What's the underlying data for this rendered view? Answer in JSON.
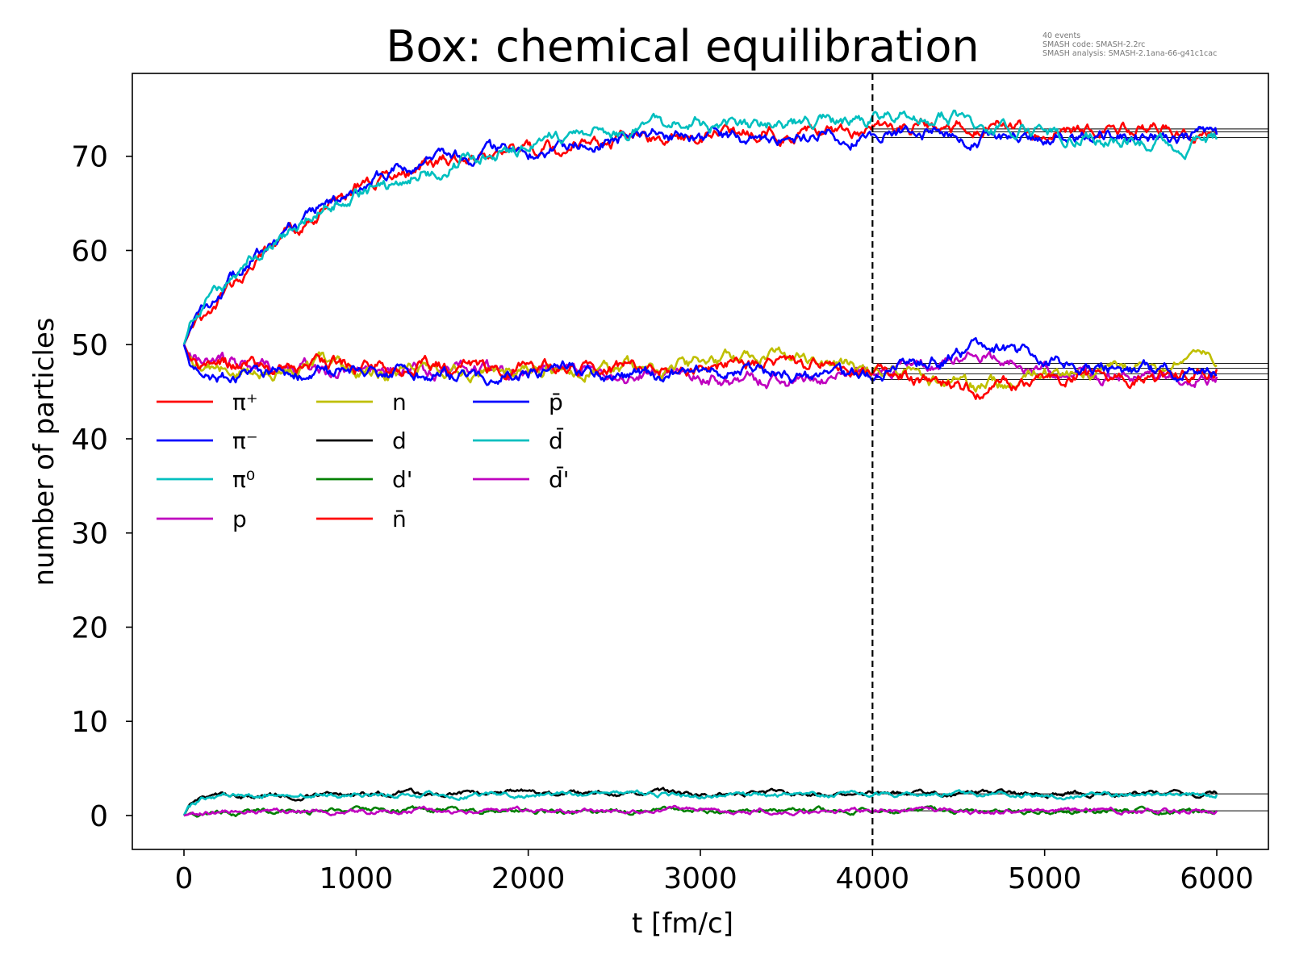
{
  "chart_data": {
    "type": "line",
    "title": "Box: chemical equilibration",
    "xlabel": "t [fm/c]",
    "ylabel": "number of particles",
    "xlim": [
      -300,
      6300
    ],
    "ylim": [
      -3.6,
      78.8
    ],
    "xticks": [
      0,
      1000,
      2000,
      3000,
      4000,
      5000,
      6000
    ],
    "yticks": [
      0,
      10,
      20,
      30,
      40,
      50,
      60,
      70
    ],
    "grid": false,
    "legend_location": "center-left",
    "legend_columns": 3,
    "info_text": [
      "40 events",
      "SMASH code:      SMASH-2.2rc",
      "SMASH analysis: SMASH-2.1ana-66-g41c1cac"
    ],
    "vertical_reference_line": {
      "x": 4000,
      "style": "dashed",
      "color": "#000000"
    },
    "equilibrium_reference_lines": [
      {
        "y": 72.9,
        "x_start": 4000,
        "x_end": 6300
      },
      {
        "y": 72.6,
        "x_start": 4000,
        "x_end": 6300
      },
      {
        "y": 72.0,
        "x_start": 4000,
        "x_end": 6300
      },
      {
        "y": 48.0,
        "x_start": 4000,
        "x_end": 6300
      },
      {
        "y": 47.5,
        "x_start": 4000,
        "x_end": 6300
      },
      {
        "y": 46.9,
        "x_start": 4000,
        "x_end": 6300
      },
      {
        "y": 46.3,
        "x_start": 4000,
        "x_end": 6300
      },
      {
        "y": 2.3,
        "x_start": 4000,
        "x_end": 6300
      },
      {
        "y": 0.5,
        "x_start": 4000,
        "x_end": 6300
      }
    ],
    "x": [
      0,
      25,
      50,
      100,
      150,
      200,
      300,
      400,
      500,
      600,
      700,
      800,
      900,
      1000,
      1200,
      1400,
      1600,
      1800,
      2000,
      2200,
      2400,
      2600,
      2800,
      3000,
      3200,
      3400,
      3600,
      3800,
      4000,
      4200,
      4400,
      4600,
      4800,
      5000,
      5200,
      5400,
      5600,
      5800,
      6000
    ],
    "series": [
      {
        "name": "π⁺",
        "color": "#ff0000",
        "values": [
          50,
          51.0,
          51.5,
          52.5,
          53.5,
          54.5,
          56.5,
          58.5,
          60.0,
          61.5,
          63.0,
          64.3,
          65.5,
          66.8,
          68.0,
          69.0,
          69.8,
          70.2,
          70.6,
          70.8,
          71.2,
          71.8,
          72.0,
          72.3,
          72.5,
          72.6,
          72.8,
          72.7,
          72.8,
          73.0,
          73.2,
          73.3,
          72.9,
          72.6,
          72.9,
          73.0,
          72.9,
          72.7,
          72.3
        ]
      },
      {
        "name": "π⁻",
        "color": "#0000ff",
        "values": [
          50,
          51.2,
          52.0,
          53.3,
          54.3,
          55.2,
          57.0,
          59.0,
          60.3,
          61.8,
          63.3,
          64.6,
          65.6,
          66.6,
          68.3,
          69.4,
          70.1,
          70.3,
          70.0,
          70.5,
          71.5,
          72.3,
          72.4,
          71.8,
          71.8,
          71.5,
          72.2,
          72.3,
          72.3,
          72.6,
          72.4,
          72.1,
          71.9,
          72.2,
          72.0,
          72.1,
          72.1,
          72.0,
          72.3
        ]
      },
      {
        "name": "π⁰",
        "color": "#00bfbf",
        "values": [
          50,
          51.5,
          52.3,
          53.7,
          54.8,
          55.5,
          57.3,
          59.2,
          60.6,
          62.0,
          63.5,
          64.7,
          65.5,
          66.3,
          67.0,
          68.5,
          69.3,
          70.2,
          71.0,
          72.3,
          72.6,
          72.8,
          73.2,
          73.4,
          73.2,
          73.5,
          73.6,
          73.6,
          73.7,
          74.5,
          74.3,
          73.8,
          73.3,
          72.4,
          72.0,
          71.6,
          71.3,
          71.6,
          71.8
        ]
      },
      {
        "name": "p",
        "color": "#bf00bf",
        "values": [
          50,
          49.0,
          48.4,
          48.3,
          48.5,
          48.4,
          48.0,
          47.7,
          47.6,
          47.4,
          47.5,
          47.3,
          47.2,
          47.4,
          47.3,
          47.0,
          47.2,
          47.0,
          47.3,
          47.1,
          47.0,
          47.0,
          47.0,
          46.6,
          46.5,
          46.2,
          46.0,
          46.6,
          47.2,
          47.9,
          48.4,
          48.6,
          48.3,
          47.6,
          47.0,
          46.7,
          46.6,
          46.5,
          46.6
        ]
      },
      {
        "name": "n",
        "color": "#bfbf00",
        "values": [
          50,
          48.8,
          48.0,
          47.5,
          47.2,
          47.3,
          47.4,
          47.6,
          47.3,
          47.6,
          47.4,
          47.7,
          47.6,
          47.5,
          47.3,
          47.4,
          47.2,
          47.4,
          47.5,
          47.3,
          47.4,
          47.6,
          47.6,
          47.9,
          48.3,
          48.6,
          48.4,
          48.2,
          47.5,
          46.8,
          46.2,
          45.9,
          46.2,
          46.8,
          47.2,
          47.5,
          47.7,
          48.0,
          47.8
        ]
      },
      {
        "name": "d",
        "color": "#000000",
        "values": [
          0,
          0.9,
          1.3,
          1.8,
          1.9,
          2.0,
          2.0,
          2.1,
          2.1,
          2.2,
          2.2,
          2.3,
          2.2,
          2.3,
          2.3,
          2.3,
          2.4,
          2.3,
          2.4,
          2.3,
          2.4,
          2.3,
          2.4,
          2.3,
          2.3,
          2.4,
          2.3,
          2.3,
          2.4,
          2.3,
          2.3,
          2.4,
          2.3,
          2.3,
          2.3,
          2.3,
          2.4,
          2.3,
          2.3
        ]
      },
      {
        "name": "d'",
        "color": "#008000",
        "values": [
          0,
          0.12,
          0.18,
          0.25,
          0.3,
          0.34,
          0.38,
          0.4,
          0.42,
          0.44,
          0.46,
          0.47,
          0.48,
          0.49,
          0.5,
          0.5,
          0.5,
          0.5,
          0.51,
          0.5,
          0.51,
          0.5,
          0.51,
          0.5,
          0.5,
          0.5,
          0.51,
          0.5,
          0.5,
          0.5,
          0.51,
          0.5,
          0.5,
          0.5,
          0.5,
          0.51,
          0.5,
          0.5,
          0.5
        ]
      },
      {
        "name": "n̄",
        "color": "#ff0000",
        "values": [
          50,
          49.0,
          48.5,
          48.0,
          48.2,
          48.0,
          47.8,
          47.9,
          47.6,
          47.8,
          47.6,
          47.7,
          47.8,
          47.5,
          47.8,
          47.6,
          47.7,
          47.4,
          47.6,
          47.5,
          47.4,
          47.6,
          47.8,
          47.7,
          47.9,
          48.0,
          47.8,
          47.9,
          47.2,
          46.5,
          46.0,
          45.1,
          45.6,
          46.3,
          46.8,
          46.5,
          46.8,
          47.2,
          47.4
        ]
      },
      {
        "name": "p̄",
        "color": "#0000ff",
        "values": [
          50,
          48.5,
          48.0,
          47.6,
          47.2,
          46.8,
          46.7,
          46.8,
          47.0,
          47.0,
          47.1,
          47.2,
          47.3,
          47.3,
          47.0,
          46.8,
          46.7,
          46.4,
          47.2,
          47.3,
          47.0,
          46.7,
          46.9,
          47.1,
          47.3,
          47.2,
          46.6,
          46.6,
          47.0,
          47.8,
          48.3,
          49.6,
          49.4,
          48.5,
          47.8,
          47.6,
          47.3,
          47.1,
          46.8
        ]
      },
      {
        "name": "d̄",
        "color": "#00bfbf",
        "values": [
          0,
          1.0,
          1.4,
          1.8,
          1.9,
          1.9,
          2.0,
          2.0,
          2.1,
          2.1,
          2.2,
          2.1,
          2.2,
          2.2,
          2.2,
          2.3,
          2.2,
          2.3,
          2.2,
          2.3,
          2.3,
          2.2,
          2.3,
          2.2,
          2.3,
          2.2,
          2.3,
          2.2,
          2.3,
          2.2,
          2.3,
          2.2,
          2.3,
          2.3,
          2.2,
          2.3,
          2.2,
          2.3,
          2.2
        ]
      },
      {
        "name": "d̄'",
        "color": "#bf00bf",
        "values": [
          0,
          0.1,
          0.16,
          0.23,
          0.28,
          0.32,
          0.36,
          0.39,
          0.41,
          0.43,
          0.45,
          0.46,
          0.47,
          0.48,
          0.49,
          0.49,
          0.5,
          0.5,
          0.5,
          0.5,
          0.5,
          0.5,
          0.5,
          0.5,
          0.5,
          0.5,
          0.5,
          0.5,
          0.5,
          0.5,
          0.5,
          0.5,
          0.5,
          0.5,
          0.5,
          0.5,
          0.5,
          0.5,
          0.5
        ]
      }
    ]
  }
}
